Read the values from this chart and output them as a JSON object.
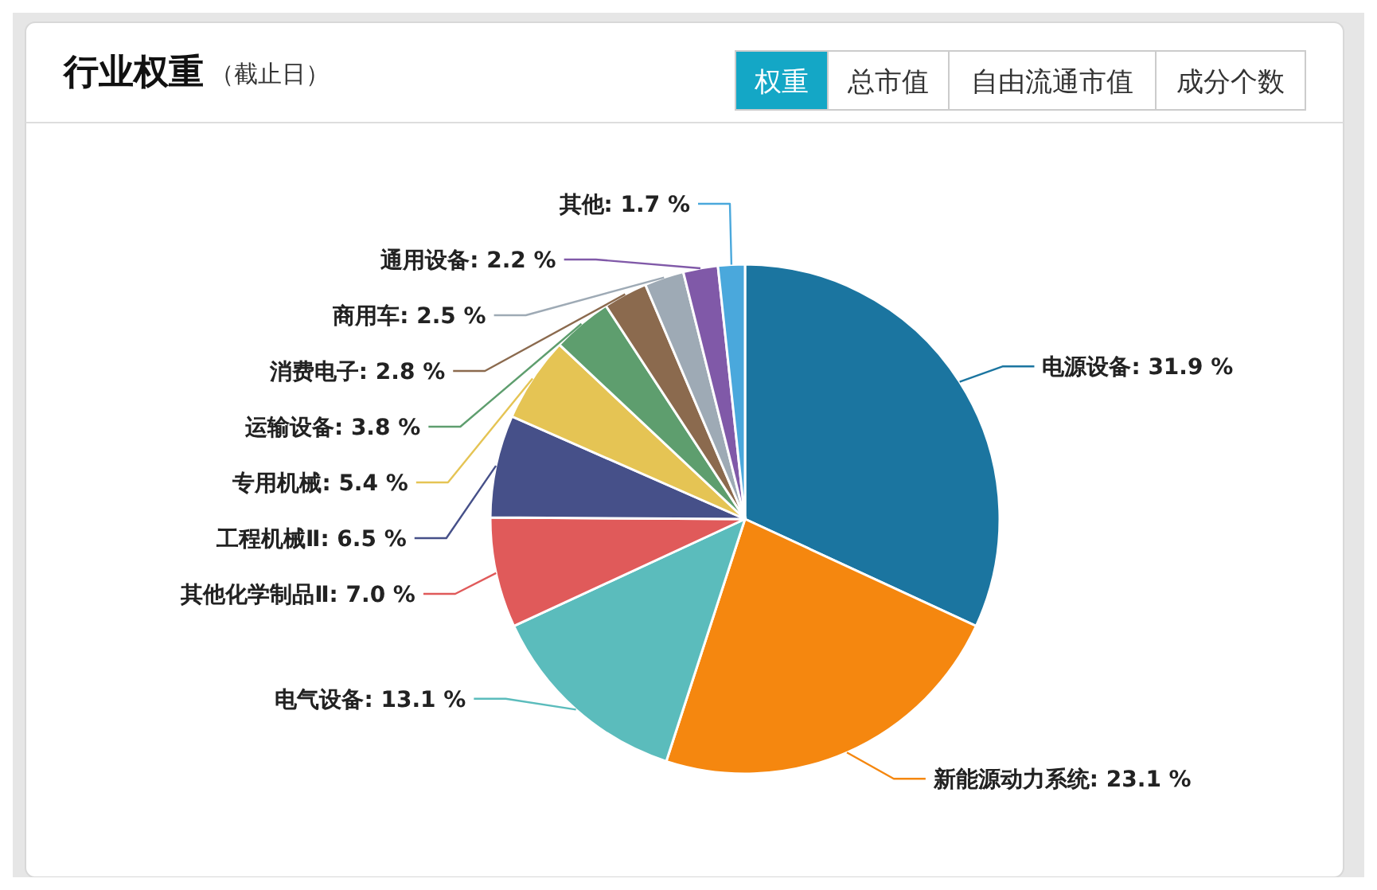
{
  "chart_data": {
    "type": "pie",
    "title": "行业权重",
    "subtitle": "（截止日）",
    "annotations": [
      "权重",
      "总市值",
      "自由流通市值",
      "成分个数"
    ],
    "categories": [
      "电源设备",
      "新能源动力系统",
      "电气设备",
      "其他化学制品Ⅱ",
      "工程机械Ⅱ",
      "专用机械",
      "运输设备",
      "消费电子",
      "商用车",
      "通用设备",
      "其他"
    ],
    "values": [
      31.9,
      23.1,
      13.1,
      7.0,
      6.5,
      5.4,
      3.8,
      2.8,
      2.5,
      2.2,
      1.7
    ],
    "value_labels": [
      "31.9 %",
      "23.1 %",
      "13.1 %",
      "7.0 %",
      "6.5 %",
      "5.4 %",
      "3.8 %",
      "2.8 %",
      "2.5 %",
      "2.2 %",
      "1.7 %"
    ],
    "colors": [
      "#1b75a0",
      "#f5870f",
      "#5bbcbc",
      "#e05a5a",
      "#465089",
      "#e5c454",
      "#5e9e6e",
      "#8b6a4e",
      "#9eaab5",
      "#8059a8",
      "#4aa8dc"
    ]
  }
}
